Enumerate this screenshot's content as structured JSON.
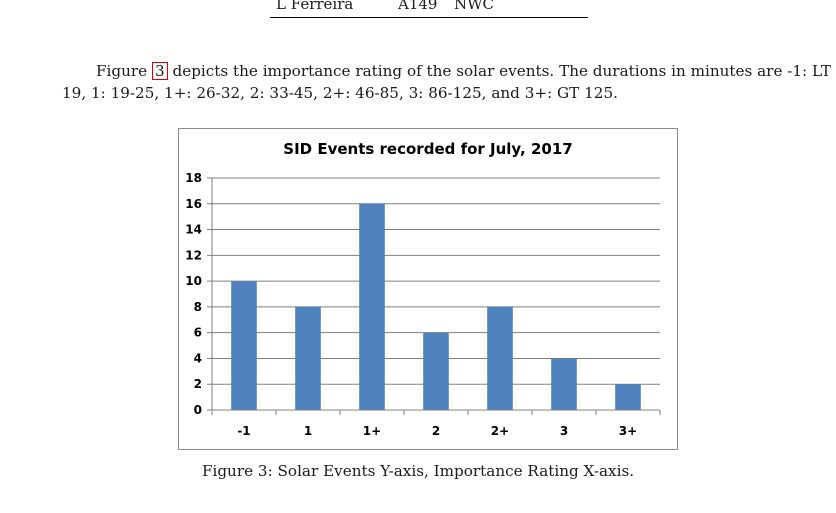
{
  "header_row": {
    "name": "L Ferreira",
    "code": "A149",
    "station": "NWC"
  },
  "paragraph": {
    "line1_prefix": "Figure",
    "figure_ref": "3",
    "line1_suffix": "depicts the importance rating of the solar events. The durations in minutes are -1: LT",
    "line2": "19, 1: 19-25, 1+: 26-32, 2: 33-45, 2+: 46-85, 3: 86-125, and 3+: GT 125."
  },
  "caption": "Figure 3: Solar Events Y-axis, Importance Rating X-axis.",
  "chart_data": {
    "type": "bar",
    "title": "SID Events recorded for July, 2017",
    "categories": [
      "-1",
      "1",
      "1+",
      "2",
      "2+",
      "3",
      "3+"
    ],
    "values": [
      10,
      8,
      16,
      6,
      8,
      4,
      2
    ],
    "yticks": [
      "0",
      "2",
      "4",
      "6",
      "8",
      "10",
      "12",
      "14",
      "16",
      "18"
    ],
    "ylim": [
      0,
      18
    ],
    "xlabel": "",
    "ylabel": "",
    "grid": true,
    "bar_color": "#4f81bd",
    "grid_color": "#7f7f7f"
  }
}
